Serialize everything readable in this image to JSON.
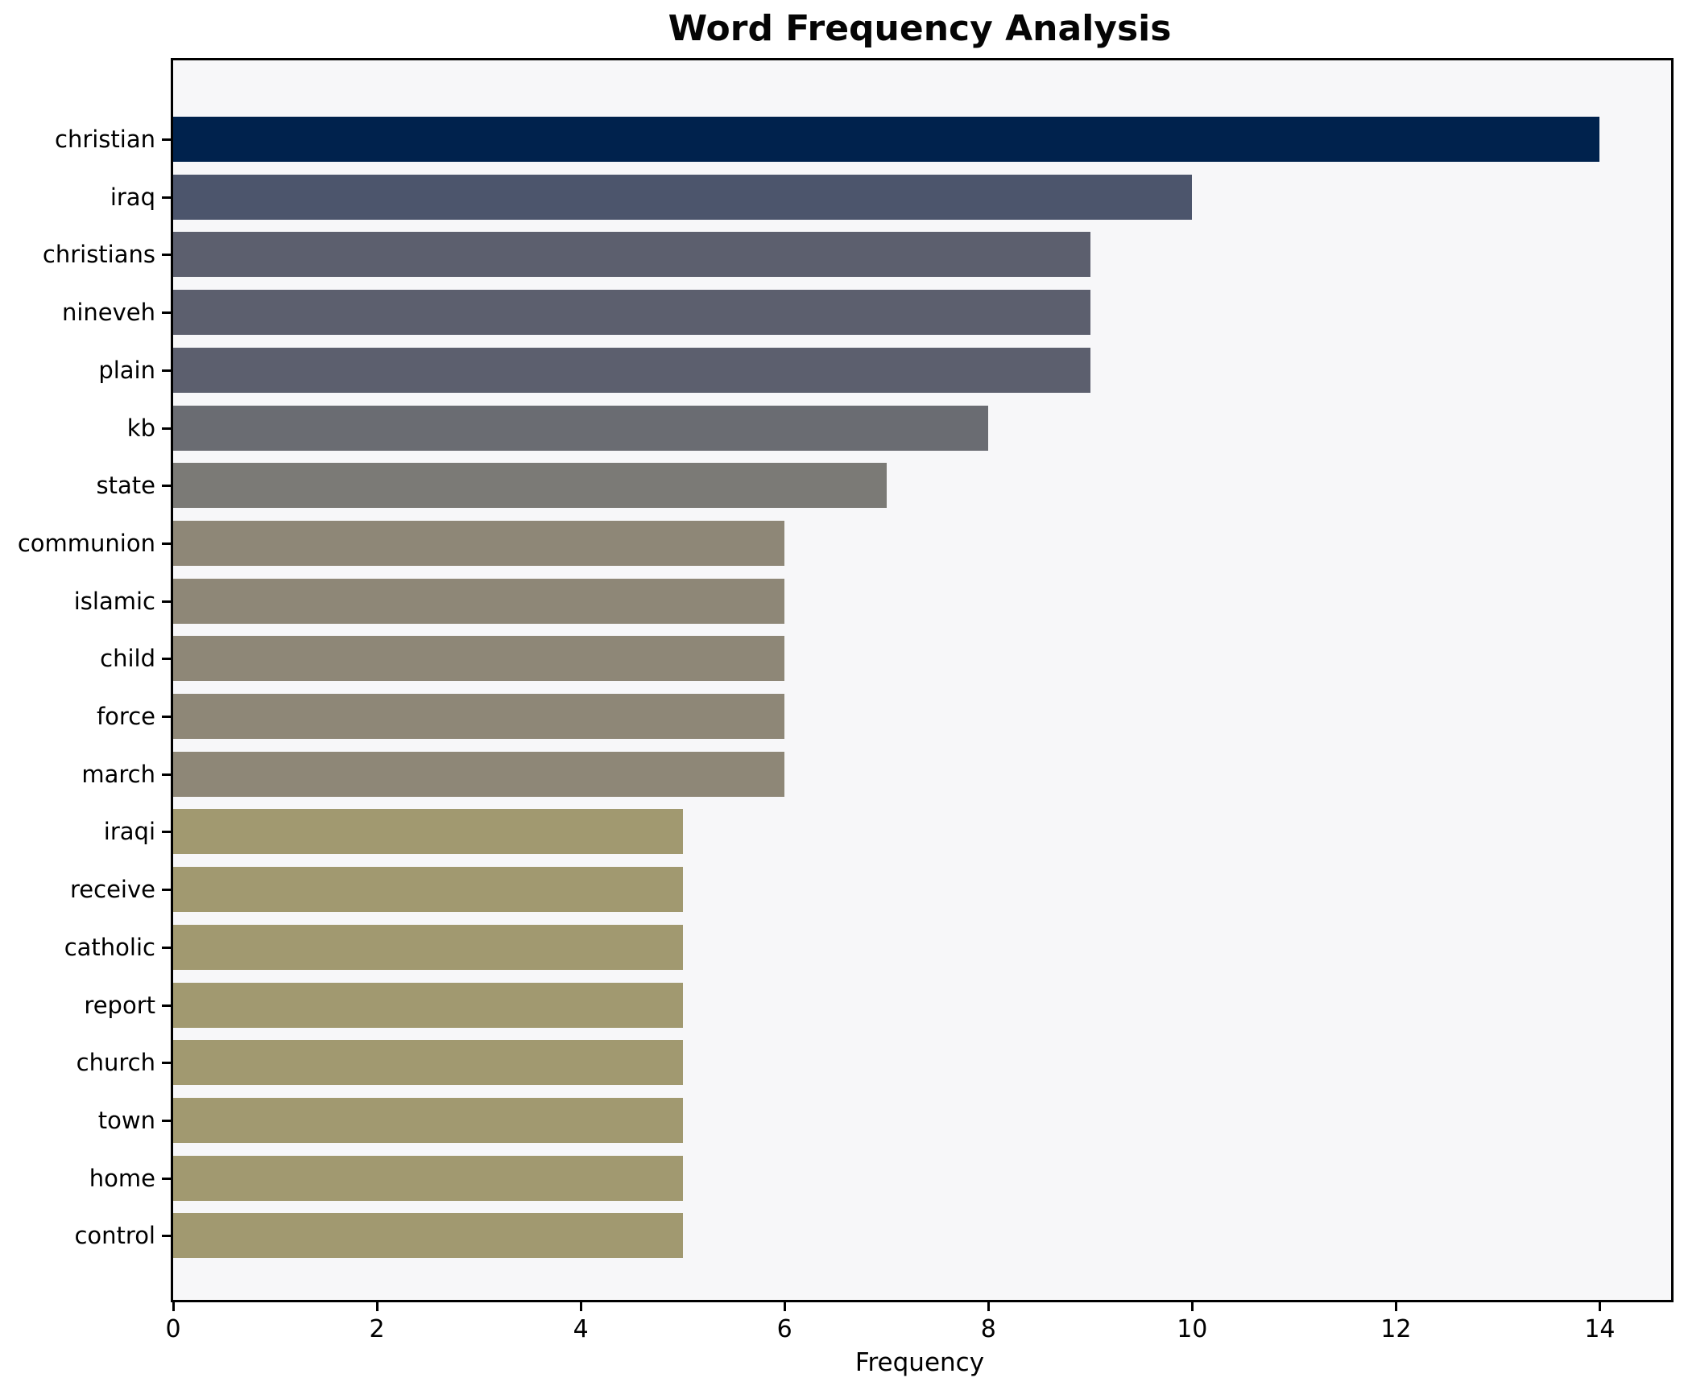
{
  "title": "Word Frequency Analysis",
  "chart_data": {
    "type": "bar",
    "orientation": "horizontal",
    "title": "Word Frequency Analysis",
    "xlabel": "Frequency",
    "ylabel": "",
    "categories": [
      "christian",
      "iraq",
      "christians",
      "nineveh",
      "plain",
      "kb",
      "state",
      "communion",
      "islamic",
      "child",
      "force",
      "march",
      "iraqi",
      "receive",
      "catholic",
      "report",
      "church",
      "town",
      "home",
      "control"
    ],
    "values": [
      14,
      10,
      9,
      9,
      9,
      8,
      7,
      6,
      6,
      6,
      6,
      6,
      5,
      5,
      5,
      5,
      5,
      5,
      5,
      5
    ],
    "bar_colors": [
      "#00224d",
      "#4c556c",
      "#5c5f6e",
      "#5c5f6e",
      "#5c5f6e",
      "#6a6c72",
      "#7b7a76",
      "#8e8777",
      "#8e8777",
      "#8e8777",
      "#8e8777",
      "#8e8777",
      "#a19970",
      "#a19970",
      "#a19970",
      "#a19970",
      "#a19970",
      "#a19970",
      "#a19970",
      "#a19970"
    ],
    "x_ticks": [
      0,
      2,
      4,
      6,
      8,
      10,
      12,
      14
    ],
    "xlim": [
      0,
      14.7
    ],
    "grid": false,
    "legend": "none",
    "plot_background": "#f7f7f9",
    "figure_background": "#ffffff",
    "spine_color": "#000000",
    "text_color": "#000000"
  }
}
